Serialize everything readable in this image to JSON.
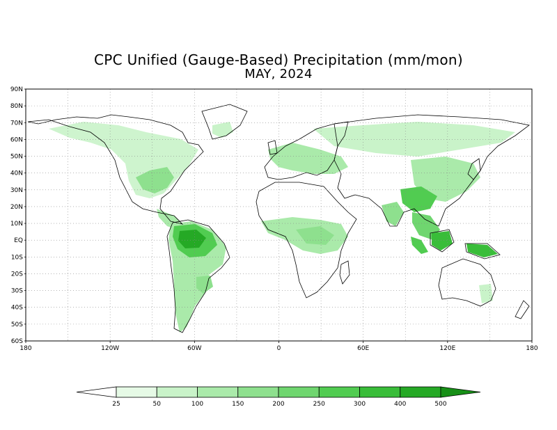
{
  "title": "CPC Unified (Gauge-Based) Precipitation (mm/mon)",
  "subtitle": "MAY, 2024",
  "lat_labels": [
    "90N",
    "80N",
    "70N",
    "60N",
    "50N",
    "40N",
    "30N",
    "20N",
    "10N",
    "EQ",
    "10S",
    "20S",
    "30S",
    "40S",
    "50S",
    "60S"
  ],
  "lon_labels": [
    "180",
    "120W",
    "60W",
    "0",
    "60E",
    "120E",
    "180"
  ],
  "legend": {
    "thresholds": [
      "25",
      "50",
      "100",
      "150",
      "200",
      "250",
      "300",
      "400",
      "500"
    ],
    "colors": [
      "#ffffff",
      "#e6fae6",
      "#c9f3c9",
      "#aaeaaa",
      "#8ee08e",
      "#6fd66f",
      "#51cc51",
      "#39bd39",
      "#25a925",
      "#178f17"
    ]
  },
  "colors": {
    "outline": "#000000",
    "grid": "#888888"
  }
}
